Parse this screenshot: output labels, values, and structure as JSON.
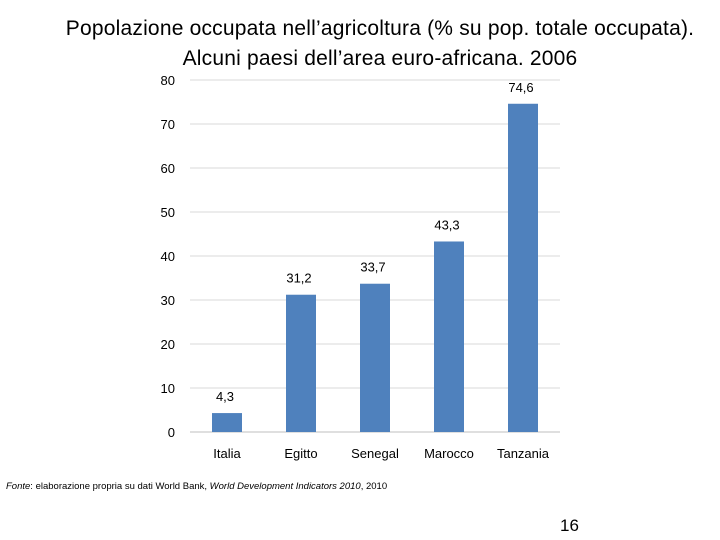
{
  "title": "Popolazione occupata nell’agricoltura (% su pop. totale occupata). Alcuni paesi dell’area euro-africana. 2006",
  "chart_data": {
    "type": "bar",
    "title": "Popolazione occupata nell’agricoltura (% su pop. totale occupata). Alcuni paesi dell’area euro-africana. 2006",
    "categories": [
      "Italia",
      "Egitto",
      "Senegal",
      "Marocco",
      "Tanzania"
    ],
    "values": [
      4.3,
      31.2,
      33.7,
      43.3,
      74.6
    ],
    "value_labels": [
      "4,3",
      "31,2",
      "33,7",
      "43,3",
      "74,6"
    ],
    "ylim": [
      0,
      80
    ],
    "yticks": [
      "0",
      "10",
      "20",
      "30",
      "40",
      "50",
      "60",
      "70",
      "80"
    ],
    "grid": true,
    "bar_color": "#4F81BD",
    "grid_color": "#d9d9d9"
  },
  "source": {
    "label": "Fonte",
    "text_before": ": elaborazione propria su dati World Bank, ",
    "publication": "World Development Indicators 2010",
    "text_after": ", 2010"
  },
  "page_number": "16"
}
